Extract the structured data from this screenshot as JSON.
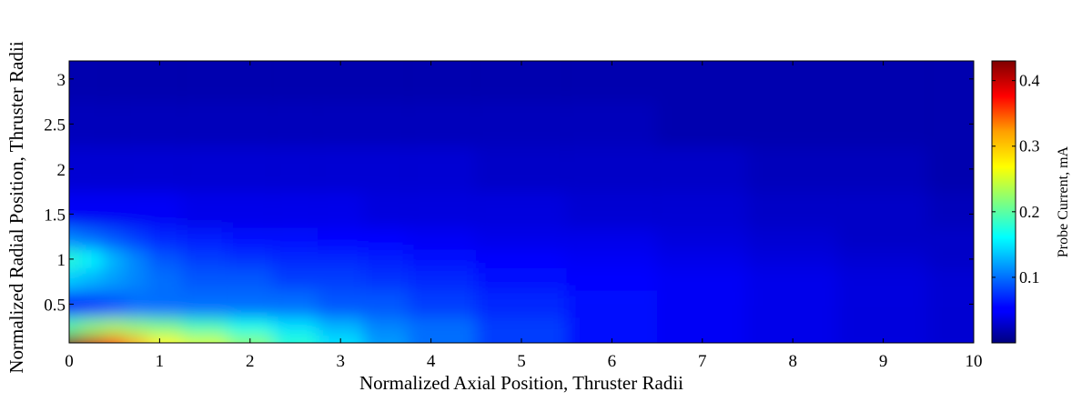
{
  "chart_data": {
    "type": "heatmap",
    "xlabel": "Normalized Axial Position, Thruster Radii",
    "ylabel": "Normalized Radial Position, Thruster Radii",
    "xlim": [
      0,
      10
    ],
    "ylim": [
      0.07,
      3.2
    ],
    "x_ticks": [
      "0",
      "1",
      "2",
      "3",
      "4",
      "5",
      "6",
      "7",
      "8",
      "9",
      "10"
    ],
    "y_ticks": [
      "0.5",
      "1",
      "1.5",
      "2",
      "2.5",
      "3"
    ],
    "colormap": "jet",
    "colorbar": {
      "label": "Probe Current, mA",
      "range": [
        0.0,
        0.43
      ],
      "ticks": [
        "0.1",
        "0.2",
        "0.3",
        "0.4"
      ]
    },
    "grid": false,
    "x": [
      0,
      0.25,
      0.5,
      0.75,
      1,
      1.5,
      2,
      2.5,
      3,
      3.5,
      4,
      5,
      6,
      7,
      8,
      9,
      10
    ],
    "y": [
      0.1,
      0.2,
      0.5,
      0.8,
      1.0,
      1.2,
      1.5,
      2.0,
      2.5,
      3.0,
      3.2
    ],
    "z": [
      [
        0.43,
        0.4,
        0.35,
        0.3,
        0.27,
        0.25,
        0.22,
        0.18,
        0.15,
        0.12,
        0.1,
        0.08,
        0.06,
        0.05,
        0.045,
        0.04,
        0.035
      ],
      [
        0.2,
        0.22,
        0.23,
        0.22,
        0.21,
        0.19,
        0.17,
        0.15,
        0.13,
        0.11,
        0.1,
        0.08,
        0.06,
        0.05,
        0.045,
        0.04,
        0.035
      ],
      [
        0.07,
        0.08,
        0.09,
        0.1,
        0.1,
        0.1,
        0.1,
        0.1,
        0.09,
        0.09,
        0.08,
        0.07,
        0.06,
        0.05,
        0.045,
        0.04,
        0.035
      ],
      [
        0.14,
        0.13,
        0.12,
        0.11,
        0.1,
        0.09,
        0.09,
        0.08,
        0.08,
        0.075,
        0.07,
        0.06,
        0.055,
        0.05,
        0.045,
        0.04,
        0.035
      ],
      [
        0.18,
        0.16,
        0.13,
        0.11,
        0.09,
        0.08,
        0.075,
        0.07,
        0.07,
        0.065,
        0.06,
        0.055,
        0.05,
        0.045,
        0.04,
        0.035,
        0.03
      ],
      [
        0.11,
        0.1,
        0.09,
        0.08,
        0.07,
        0.065,
        0.06,
        0.06,
        0.055,
        0.055,
        0.05,
        0.045,
        0.045,
        0.04,
        0.035,
        0.03,
        0.03
      ],
      [
        0.05,
        0.05,
        0.05,
        0.05,
        0.05,
        0.045,
        0.045,
        0.045,
        0.045,
        0.04,
        0.04,
        0.04,
        0.035,
        0.035,
        0.03,
        0.03,
        0.025
      ],
      [
        0.035,
        0.035,
        0.035,
        0.035,
        0.035,
        0.035,
        0.035,
        0.035,
        0.035,
        0.035,
        0.035,
        0.03,
        0.03,
        0.03,
        0.025,
        0.025,
        0.02
      ],
      [
        0.025,
        0.025,
        0.025,
        0.025,
        0.025,
        0.025,
        0.025,
        0.025,
        0.025,
        0.025,
        0.025,
        0.025,
        0.025,
        0.02,
        0.02,
        0.02,
        0.02
      ],
      [
        0.02,
        0.02,
        0.02,
        0.02,
        0.02,
        0.02,
        0.02,
        0.02,
        0.02,
        0.02,
        0.02,
        0.02,
        0.02,
        0.02,
        0.02,
        0.02,
        0.02
      ],
      [
        0.02,
        0.02,
        0.02,
        0.02,
        0.02,
        0.02,
        0.02,
        0.02,
        0.02,
        0.02,
        0.02,
        0.02,
        0.02,
        0.02,
        0.02,
        0.02,
        0.02
      ]
    ]
  }
}
